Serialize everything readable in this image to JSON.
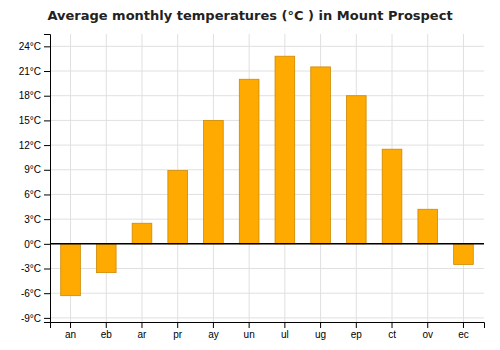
{
  "chart_data": {
    "type": "bar",
    "title": "Average monthly temperatures (°C ) in Mount Prospect",
    "categories": [
      "an",
      "eb",
      "ar",
      "pr",
      "ay",
      "un",
      "ul",
      "ug",
      "ep",
      "ct",
      "ov",
      "ec"
    ],
    "values": [
      -6.3,
      -3.5,
      2.5,
      8.9,
      15.0,
      20.0,
      22.8,
      21.5,
      18.0,
      11.5,
      4.2,
      -2.5
    ],
    "color": "#FFAA00",
    "ylim": [
      -9.5,
      25.5
    ],
    "yticks": [
      {
        "value": -9,
        "label": "-9°C"
      },
      {
        "value": -6,
        "label": "-6°C"
      },
      {
        "value": -3,
        "label": "-3°C"
      },
      {
        "value": 0,
        "label": "0°C"
      },
      {
        "value": 3,
        "label": "3°C"
      },
      {
        "value": 6,
        "label": "6°C"
      },
      {
        "value": 9,
        "label": "9°C"
      },
      {
        "value": 12,
        "label": "12°C"
      },
      {
        "value": 15,
        "label": "15°C"
      },
      {
        "value": 18,
        "label": "18°C"
      },
      {
        "value": 21,
        "label": "21°C"
      },
      {
        "value": 24,
        "label": "24°C"
      }
    ],
    "grid": true
  }
}
